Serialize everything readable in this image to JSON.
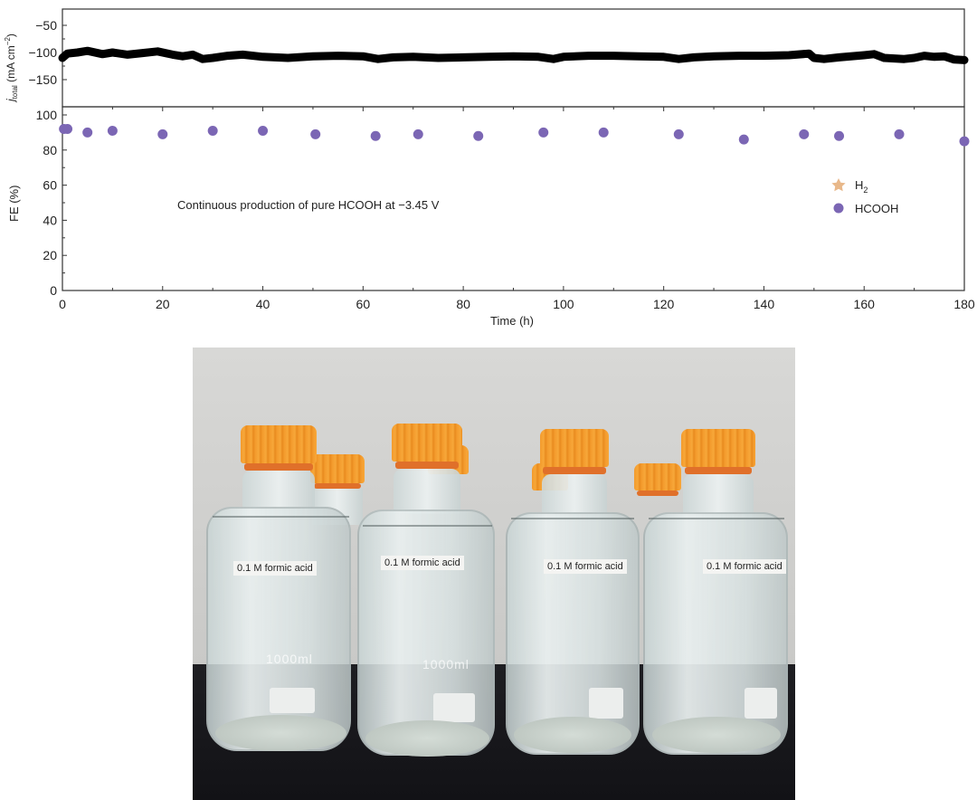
{
  "chart_data": [
    {
      "type": "line",
      "panel": "top",
      "ylabel": "j_total (mA cm^-2)",
      "ylabel_main": "j",
      "ylabel_sub": "total",
      "ylabel_unit": " (mA cm",
      "ylabel_exp": "−2",
      "ylabel_close": ")",
      "ylim": [
        -175,
        -25
      ],
      "yticks": [
        -50,
        -100,
        -150
      ],
      "ytick_labels": [
        "−50",
        "−100",
        "−150"
      ],
      "series": [
        {
          "name": "j_total",
          "color": "#000000",
          "x": [
            0,
            1,
            3,
            5,
            8,
            10,
            13,
            16,
            19,
            22,
            24,
            26,
            28,
            30,
            33,
            36,
            40,
            45,
            50,
            55,
            60,
            63,
            66,
            70,
            75,
            80,
            85,
            90,
            95,
            98,
            100,
            105,
            110,
            115,
            120,
            123,
            126,
            130,
            135,
            140,
            145,
            149,
            150,
            152,
            155,
            160,
            162,
            164,
            168,
            170,
            172,
            174,
            176,
            178,
            180
          ],
          "values": [
            -110,
            -102,
            -100,
            -97,
            -103,
            -100,
            -104,
            -101,
            -98,
            -104,
            -107,
            -104,
            -112,
            -110,
            -106,
            -104,
            -108,
            -110,
            -107,
            -106,
            -107,
            -112,
            -109,
            -108,
            -110,
            -109,
            -108,
            -107,
            -108,
            -112,
            -108,
            -106,
            -106,
            -107,
            -108,
            -112,
            -109,
            -107,
            -106,
            -106,
            -105,
            -102,
            -110,
            -112,
            -109,
            -105,
            -103,
            -110,
            -112,
            -110,
            -106,
            -108,
            -107,
            -113,
            -114
          ]
        }
      ]
    },
    {
      "type": "scatter",
      "panel": "bottom",
      "xlabel": "Time (h)",
      "ylabel": "FE (%)",
      "xlim": [
        0,
        180
      ],
      "ylim": [
        0,
        100
      ],
      "xticks": [
        0,
        20,
        40,
        60,
        80,
        100,
        120,
        140,
        160,
        180
      ],
      "yticks": [
        0,
        20,
        40,
        60,
        80,
        100
      ],
      "annotation": "Continuous production of pure HCOOH at −3.45 V",
      "legend": [
        {
          "label": "H",
          "sub": "2",
          "marker": "star",
          "color": "#e8b88a"
        },
        {
          "label": "HCOOH",
          "sub": "",
          "marker": "circle",
          "color": "#7b66b4"
        }
      ],
      "series": [
        {
          "name": "HCOOH",
          "color": "#7b66b4",
          "x": [
            0.3,
            1.0,
            5,
            10,
            20,
            30,
            40,
            50.5,
            62.5,
            71,
            83,
            96,
            108,
            123,
            136,
            148,
            155,
            167,
            180
          ],
          "values": [
            92,
            92,
            90,
            91,
            89,
            91,
            91,
            89,
            88,
            89,
            88,
            90,
            90,
            89,
            86,
            89,
            88,
            89,
            85
          ]
        },
        {
          "name": "H2",
          "color": "#e8b88a",
          "x": [],
          "values": []
        }
      ]
    }
  ],
  "photo": {
    "description": "Four glass bottles with orange caps containing clear liquid",
    "labels": [
      "0.1 M formic acid",
      "0.1 M formic acid",
      "0.1 M formic acid",
      "0.1 M formic acid"
    ],
    "graduation_text": [
      "1000ml",
      "1000ml"
    ],
    "cap_color": "#f39a2c",
    "bench_color": "#17171b",
    "wall_color": "#d3d3d1"
  }
}
